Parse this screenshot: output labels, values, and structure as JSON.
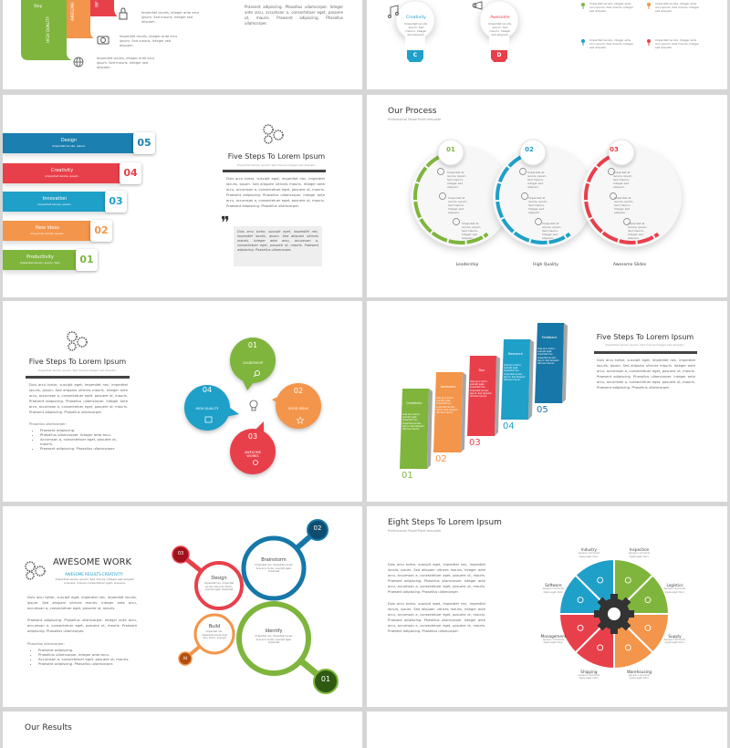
{
  "colors": {
    "green": "#7fb53d",
    "orange": "#f3954a",
    "red": "#e8404b",
    "blue": "#1fa0c8",
    "darkblue": "#1677a8",
    "gear": "#333333"
  },
  "lorem": {
    "long": "Duis arcu tortor, suscipit eget, imperdiet nec, imperdiet iaculis, ipsum. Sed aliquam ultrices mauris. Integer ante arcu, accumsan a, consectetuer eget, posuere ut, mauris. Praesent adipiscing. Phasellus ullamcorper. Integer ante arcu, accumsan a, consectetuer eget, posuere ut, mauris. Praesent adipiscing. Phasellus ullamcorper.",
    "short": "Imperdiet iaculis, ipsum. Sed mauris integer sed aliquam.",
    "item": "Imperdiet iaculis, integer ante arcu ipsum. Sed mauris. Integer sed aliquam.",
    "praesent": "Praesent adipiscing. Phasellus ullamcorper. Integer ante arcu, accumsan a, consectetuer eget, posuere ut, mauris. Praesent adipiscing. Phasellus ullamcorper.",
    "process": "Imperdiet at iaculis, ipsum. Sed mauris. Integer sed aliquam.",
    "aenean": "Aenean commodo ligula eget dolor.",
    "circle": "Imperdiet nec, imperdiet iaculis duis arcu tortor, suscipit eget, imperdiet"
  },
  "slide1": {
    "ribbons": [
      "Step",
      "HIGH QUALITY",
      "AWESOME",
      "INF"
    ],
    "bulbs": [
      {
        "title": "Creativity",
        "letter": "C",
        "text": "Imperdiet iaculis, ipsum. Sed mauris. Integer sed aliquam."
      },
      {
        "title": "Awesome",
        "letter": "D",
        "text": "Imperdiet iaculis, ipsum. Sed mauris. Integer sed aliquam."
      }
    ]
  },
  "slide3": {
    "title": "Five Steps To Lorem Ipsum",
    "subtitle": "Imperdiet iaculis, ipsum. Sed mauris integer sed aliquam.",
    "bars": [
      {
        "label": "Design",
        "num": "05",
        "text": "Imperdiet iaculis, ipsum."
      },
      {
        "label": "Creativity",
        "num": "04",
        "text": "Imperdiet iaculis, ipsum."
      },
      {
        "label": "Innovation",
        "num": "03",
        "text": "Imperdiet iaculis, ipsum."
      },
      {
        "label": "New Ideas",
        "num": "02",
        "text": "Imperdiet iaculis, ipsum."
      },
      {
        "label": "Productivity",
        "num": "01",
        "text": "Imperdiet iaculis, ipsum. Sed."
      }
    ],
    "quote": "Duis arcu tortor, suscipit eget, imperdiet nec, imperdiet iaculis, ipsum. Sed aliquam ultrices mauris. Integer ante arcu, accumsan a, consectetuer eget, posuere ut, mauris. Praesent adipiscing. Phasellus ullamcorper."
  },
  "slide4": {
    "title": "Our Process",
    "subtitle": "Professional PowerPoint template",
    "steps": [
      {
        "num": "01",
        "label": "Leadership"
      },
      {
        "num": "02",
        "label": "High Quality"
      },
      {
        "num": "03",
        "label": "Awesome Slides"
      }
    ]
  },
  "slide5": {
    "title": "Five Steps To Lorem Ipsum",
    "subtitle": "Imperdiet iaculis, ipsum. Sed mauris integer sed aliquam.",
    "list_title": "Phasellus ullamcorper:",
    "bullets": [
      "Praesent adipiscing.",
      "Phasellus ullamcorper. Integer ante arcu.",
      "Accumsan a, consectetuer eget, posuere ut, mauris.",
      "Praesent adipiscing. Phasellus ullamcorper."
    ],
    "bubbles": [
      {
        "num": "01",
        "label": "LEADERSHIP"
      },
      {
        "num": "02",
        "label": "GOOD IDEAS"
      },
      {
        "num": "03",
        "label": "AWESOME WORKS"
      },
      {
        "num": "04",
        "label": "HIGH QUALITY"
      }
    ]
  },
  "slide6": {
    "title": "Five Steps To Lorem Ipsum",
    "subtitle": "Imperdiet iaculis, ipsum. Sed mauris integer sed aliquam.",
    "steps": [
      {
        "num": "01",
        "label": "Creativity"
      },
      {
        "num": "02",
        "label": "Awesome"
      },
      {
        "num": "03",
        "label": "Run"
      },
      {
        "num": "04",
        "label": "Research"
      },
      {
        "num": "05",
        "label": "Feddback"
      }
    ],
    "step_text": "Duis arcu tortor, suscipit eget, imperdiet nec, imperdiet iaculis, ipsum. Sed aliquam ultrices mauris."
  },
  "slide7": {
    "title": "AWESOME WORK",
    "subtitle": "AWESOME RESULTS-CREATIVITY",
    "intro": "Imperdiet iaculis, ipsum. Sed mauris. Integer sed aliquam posuere, mauris consectetuer eget, posuere.",
    "para1": "Duis arcu tortor, suscipit eget, imperdiet nec, imperdiet iaculis, ipsum. Sed aliquam ultrices mauris. Integer ante arcu, accumsan a, consectetuer eget, posuere ut, mauris.",
    "para2": "Praesent adipiscing. Phasellus ullamcorper. Integer ante arcu, accumsan a, consectetuer eget, posuere ut, mauris. Praesent adipiscing. Phasellus ullamcorper.",
    "list_title": "Phasellus ullamcorper:",
    "bullets": [
      "Praesent adipiscing.",
      "Phasellus ullamcorper. Integer ante arcu.",
      "Accumsan a, consectetuer eget, posuere ut, mauris.",
      "Praesent adipiscing. Phasellus ullamcorper."
    ],
    "circles": [
      {
        "num": "01",
        "label": "Identify"
      },
      {
        "num": "02",
        "label": "Brainstorm"
      },
      {
        "num": "03",
        "label": "Design"
      },
      {
        "num": "04",
        "label": "Build"
      }
    ]
  },
  "slide8": {
    "title": "Eight Steps To Lorem Ipsum",
    "subtitle": "Professional PowerPoint template",
    "segments": [
      "Inspection",
      "Logistics",
      "Supply",
      "Warehousing",
      "Shipping",
      "Management",
      "Software",
      "Industry"
    ]
  },
  "slide9": {
    "title": "Our Results"
  }
}
